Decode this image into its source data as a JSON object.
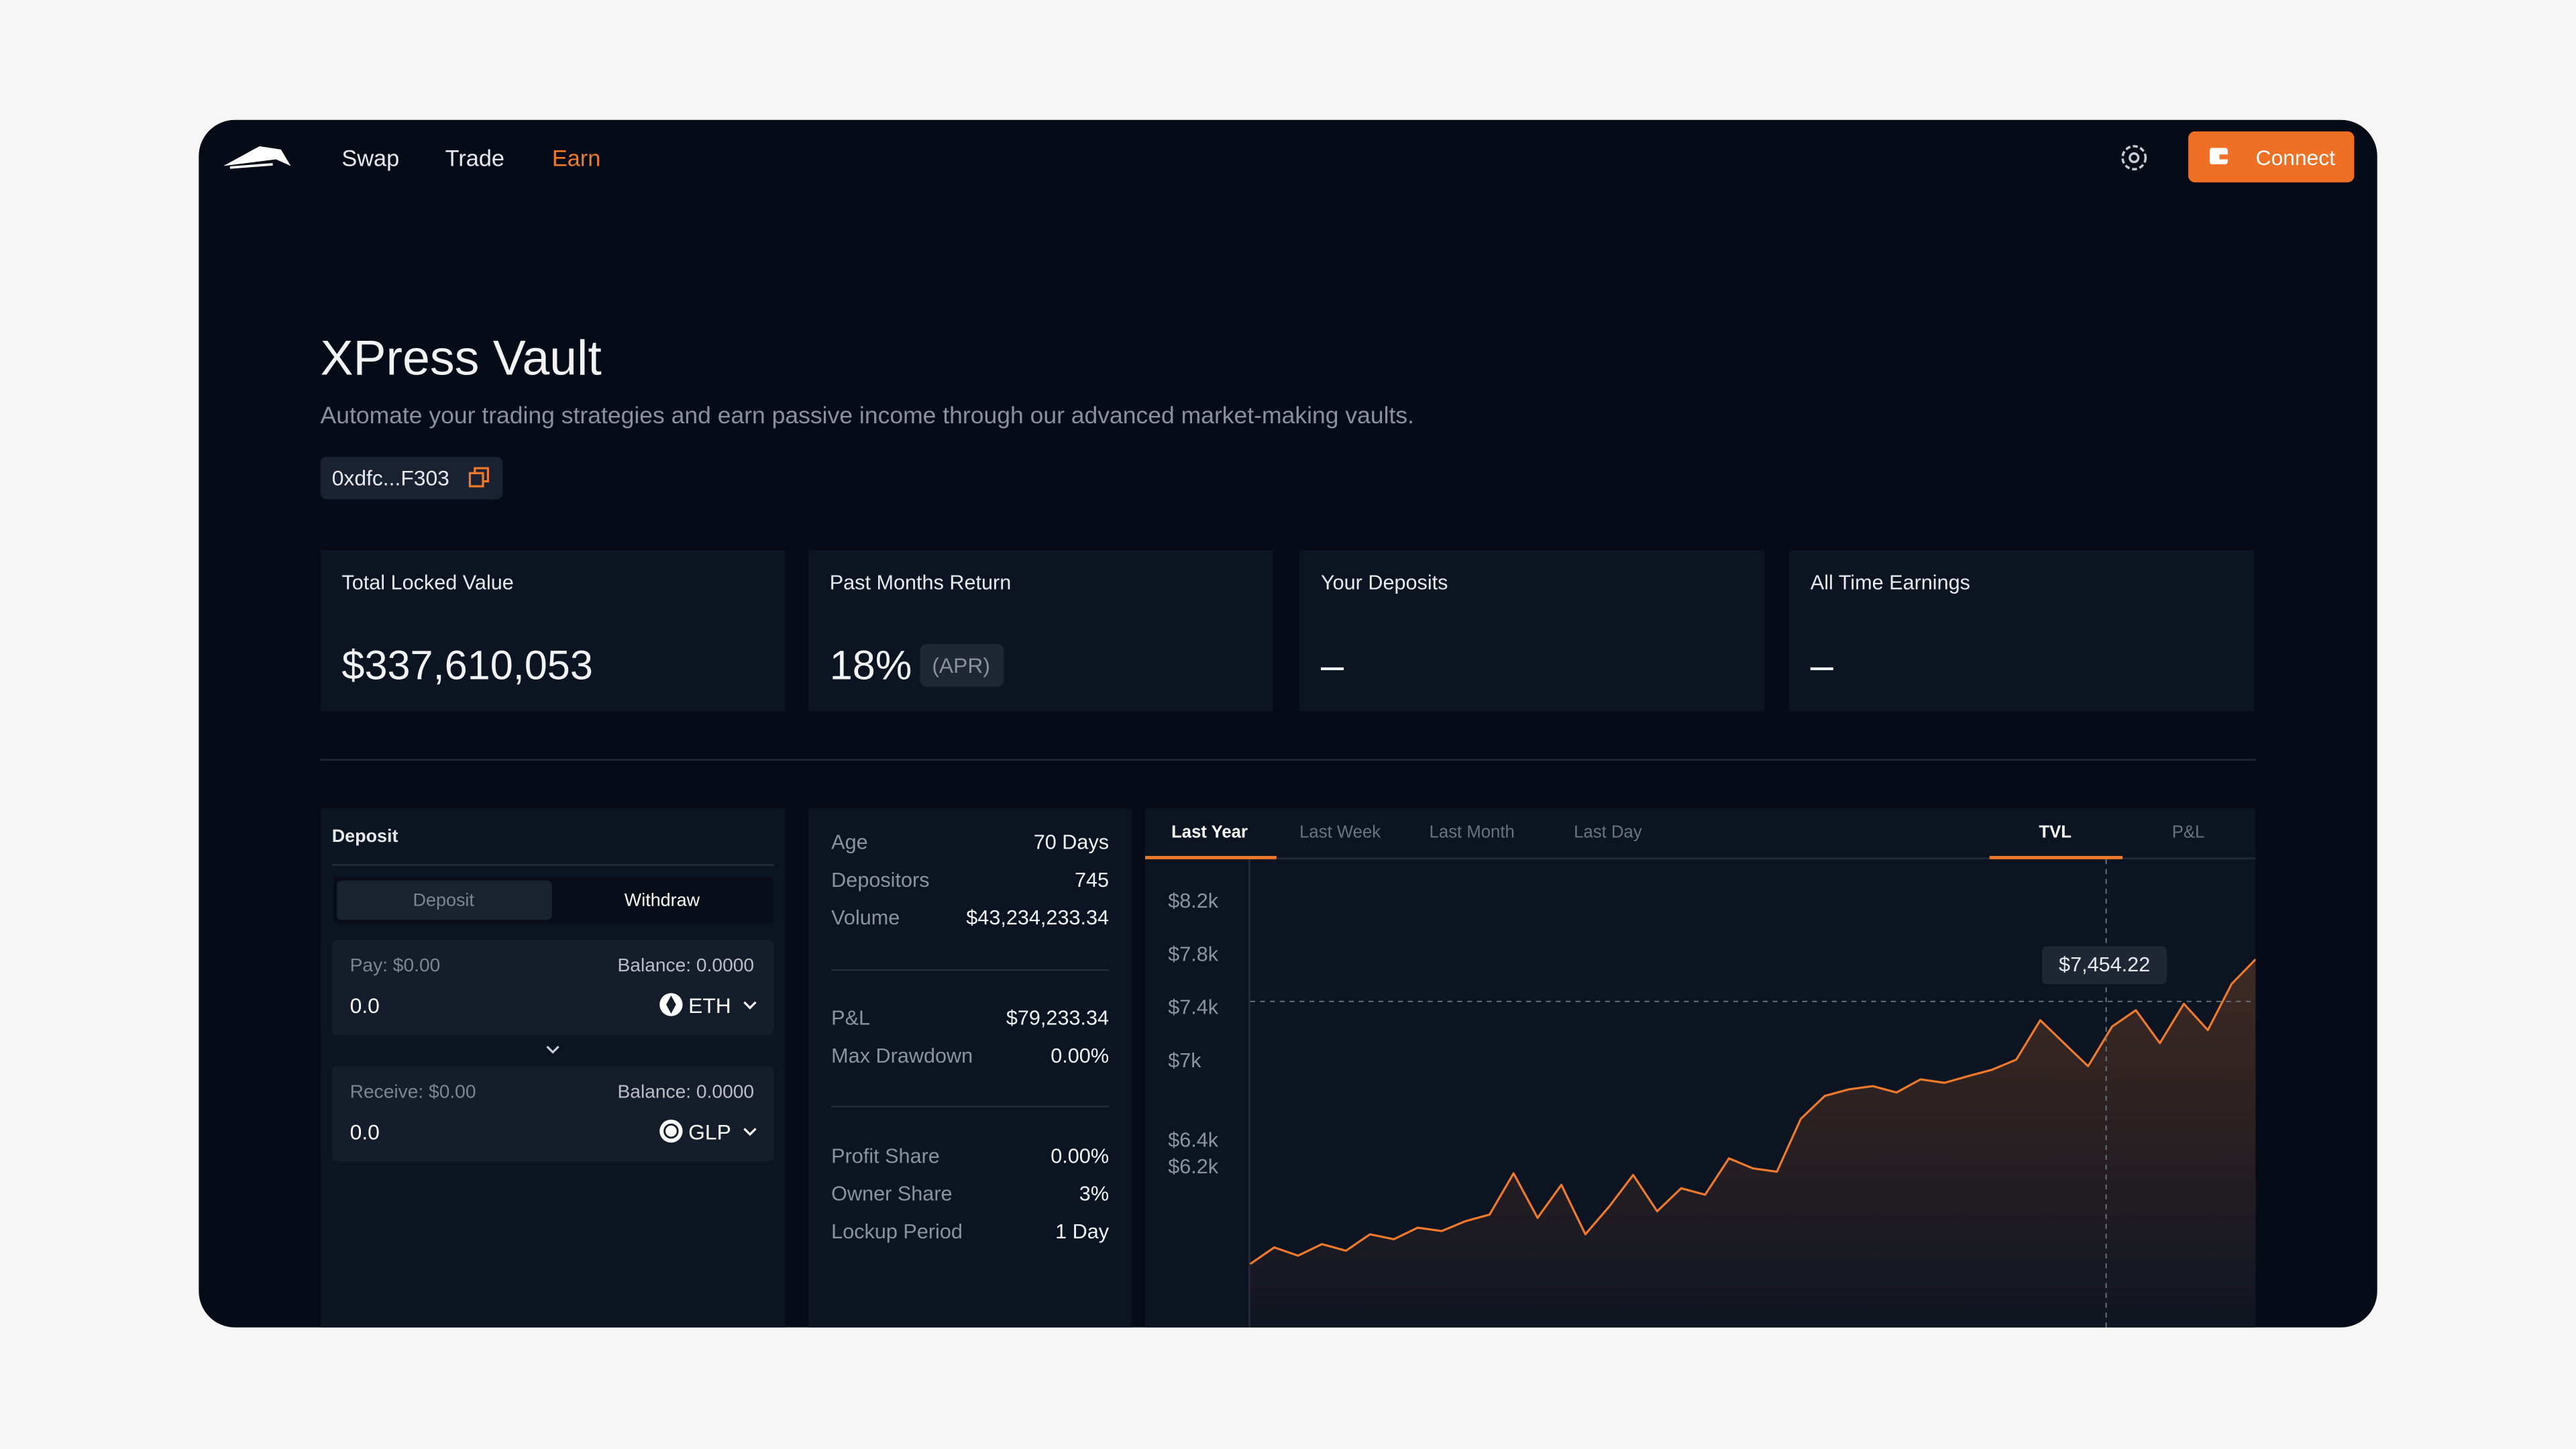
{
  "nav": {
    "links": [
      "Swap",
      "Trade",
      "Earn"
    ],
    "connect": "Connect"
  },
  "hero": {
    "title": "XPress Vault",
    "subtitle": "Automate your trading strategies and earn passive income through our advanced market-making vaults.",
    "address": "0xdfc...F303"
  },
  "stats": [
    {
      "label": "Total Locked Value",
      "value": "$337,610,053"
    },
    {
      "label": "Past Months Return",
      "value": "18%",
      "note": "(APR)"
    },
    {
      "label": "Your Deposits",
      "value": "–"
    },
    {
      "label": "All Time Earnings",
      "value": "–"
    }
  ],
  "deposit": {
    "title": "Deposit",
    "tabs": [
      "Deposit",
      "Withdraw"
    ],
    "pay": {
      "label": "Pay: $0.00",
      "balance": "Balance: 0.0000",
      "amount": "0.0",
      "token": "ETH"
    },
    "receive": {
      "label": "Receive: $0.00",
      "balance": "Balance: 0.0000",
      "amount": "0.0",
      "token": "GLP"
    }
  },
  "info": {
    "groups": [
      [
        {
          "label": "Age",
          "value": "70 Days"
        },
        {
          "label": "Depositors",
          "value": "745"
        },
        {
          "label": "Volume",
          "value": "$43,234,233.34"
        }
      ],
      [
        {
          "label": "P&L",
          "value": "$79,233.34"
        },
        {
          "label": "Max Drawdown",
          "value": "0.00%"
        }
      ],
      [
        {
          "label": "Profit Share",
          "value": "0.00%"
        },
        {
          "label": "Owner Share",
          "value": "3%"
        },
        {
          "label": "Lockup Period",
          "value": "1 Day"
        }
      ]
    ]
  },
  "chart_data": {
    "type": "line",
    "ranges": [
      "Last Year",
      "Last Week",
      "Last Month",
      "Last Day"
    ],
    "metrics": [
      "TVL",
      "P&L"
    ],
    "values": [
      5478,
      5602,
      5540,
      5627,
      5577,
      5701,
      5664,
      5751,
      5726,
      5800,
      5850,
      6160,
      5825,
      6073,
      5701,
      5912,
      6148,
      5875,
      6048,
      5999,
      6272,
      6197,
      6172,
      6569,
      6743,
      6792,
      6817,
      6768,
      6867,
      6842,
      6892,
      6941,
      7016,
      7313,
      7140,
      6966,
      7264,
      7388,
      7140,
      7437,
      7239,
      7586,
      7772
    ],
    "color": "#f07a2b",
    "ylim": [
      5000,
      8500
    ],
    "yticks": [
      {
        "value": 8200,
        "label": "$8.2k"
      },
      {
        "value": 7800,
        "label": "$7.8k"
      },
      {
        "value": 7400,
        "label": "$7.4k"
      },
      {
        "value": 7000,
        "label": "$7k"
      },
      {
        "value": 6400,
        "label": "$6.4k"
      },
      {
        "value": 6200,
        "label": "$6.2k"
      }
    ],
    "tooltip": {
      "value": 7454.22,
      "label": "$7,454.22"
    },
    "grid": false
  }
}
